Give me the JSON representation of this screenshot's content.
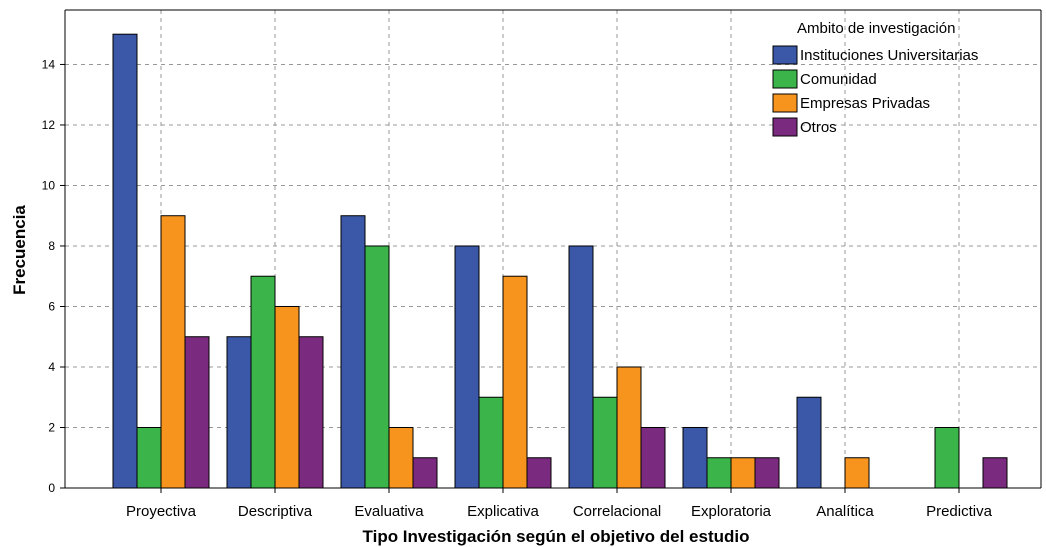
{
  "chart_data": {
    "type": "bar",
    "title": "",
    "xlabel": "Tipo Investigación según el objetivo del estudio",
    "ylabel": "Frecuencia",
    "ylim": [
      0,
      15.8
    ],
    "yticks": [
      0,
      2,
      4,
      6,
      8,
      10,
      12,
      14
    ],
    "grid": true,
    "legend_title": "Ambito de investigación",
    "legend_position": "top-right",
    "categories": [
      "Proyectiva",
      "Descriptiva",
      "Evaluativa",
      "Explicativa",
      "Correlacional",
      "Exploratoria",
      "Analítica",
      "Predictiva"
    ],
    "series": [
      {
        "name": "Instituciones Universitarias",
        "color": "#3b57a8",
        "values": [
          15,
          5,
          9,
          8,
          8,
          2,
          3,
          0
        ]
      },
      {
        "name": "Comunidad",
        "color": "#3bb54a",
        "values": [
          2,
          7,
          8,
          3,
          3,
          1,
          0,
          2
        ]
      },
      {
        "name": "Empresas Privadas",
        "color": "#f7941d",
        "values": [
          9,
          6,
          2,
          7,
          4,
          1,
          1,
          0
        ]
      },
      {
        "name": "Otros",
        "color": "#7b2b7f",
        "values": [
          5,
          5,
          1,
          1,
          2,
          1,
          0,
          1
        ]
      }
    ]
  }
}
